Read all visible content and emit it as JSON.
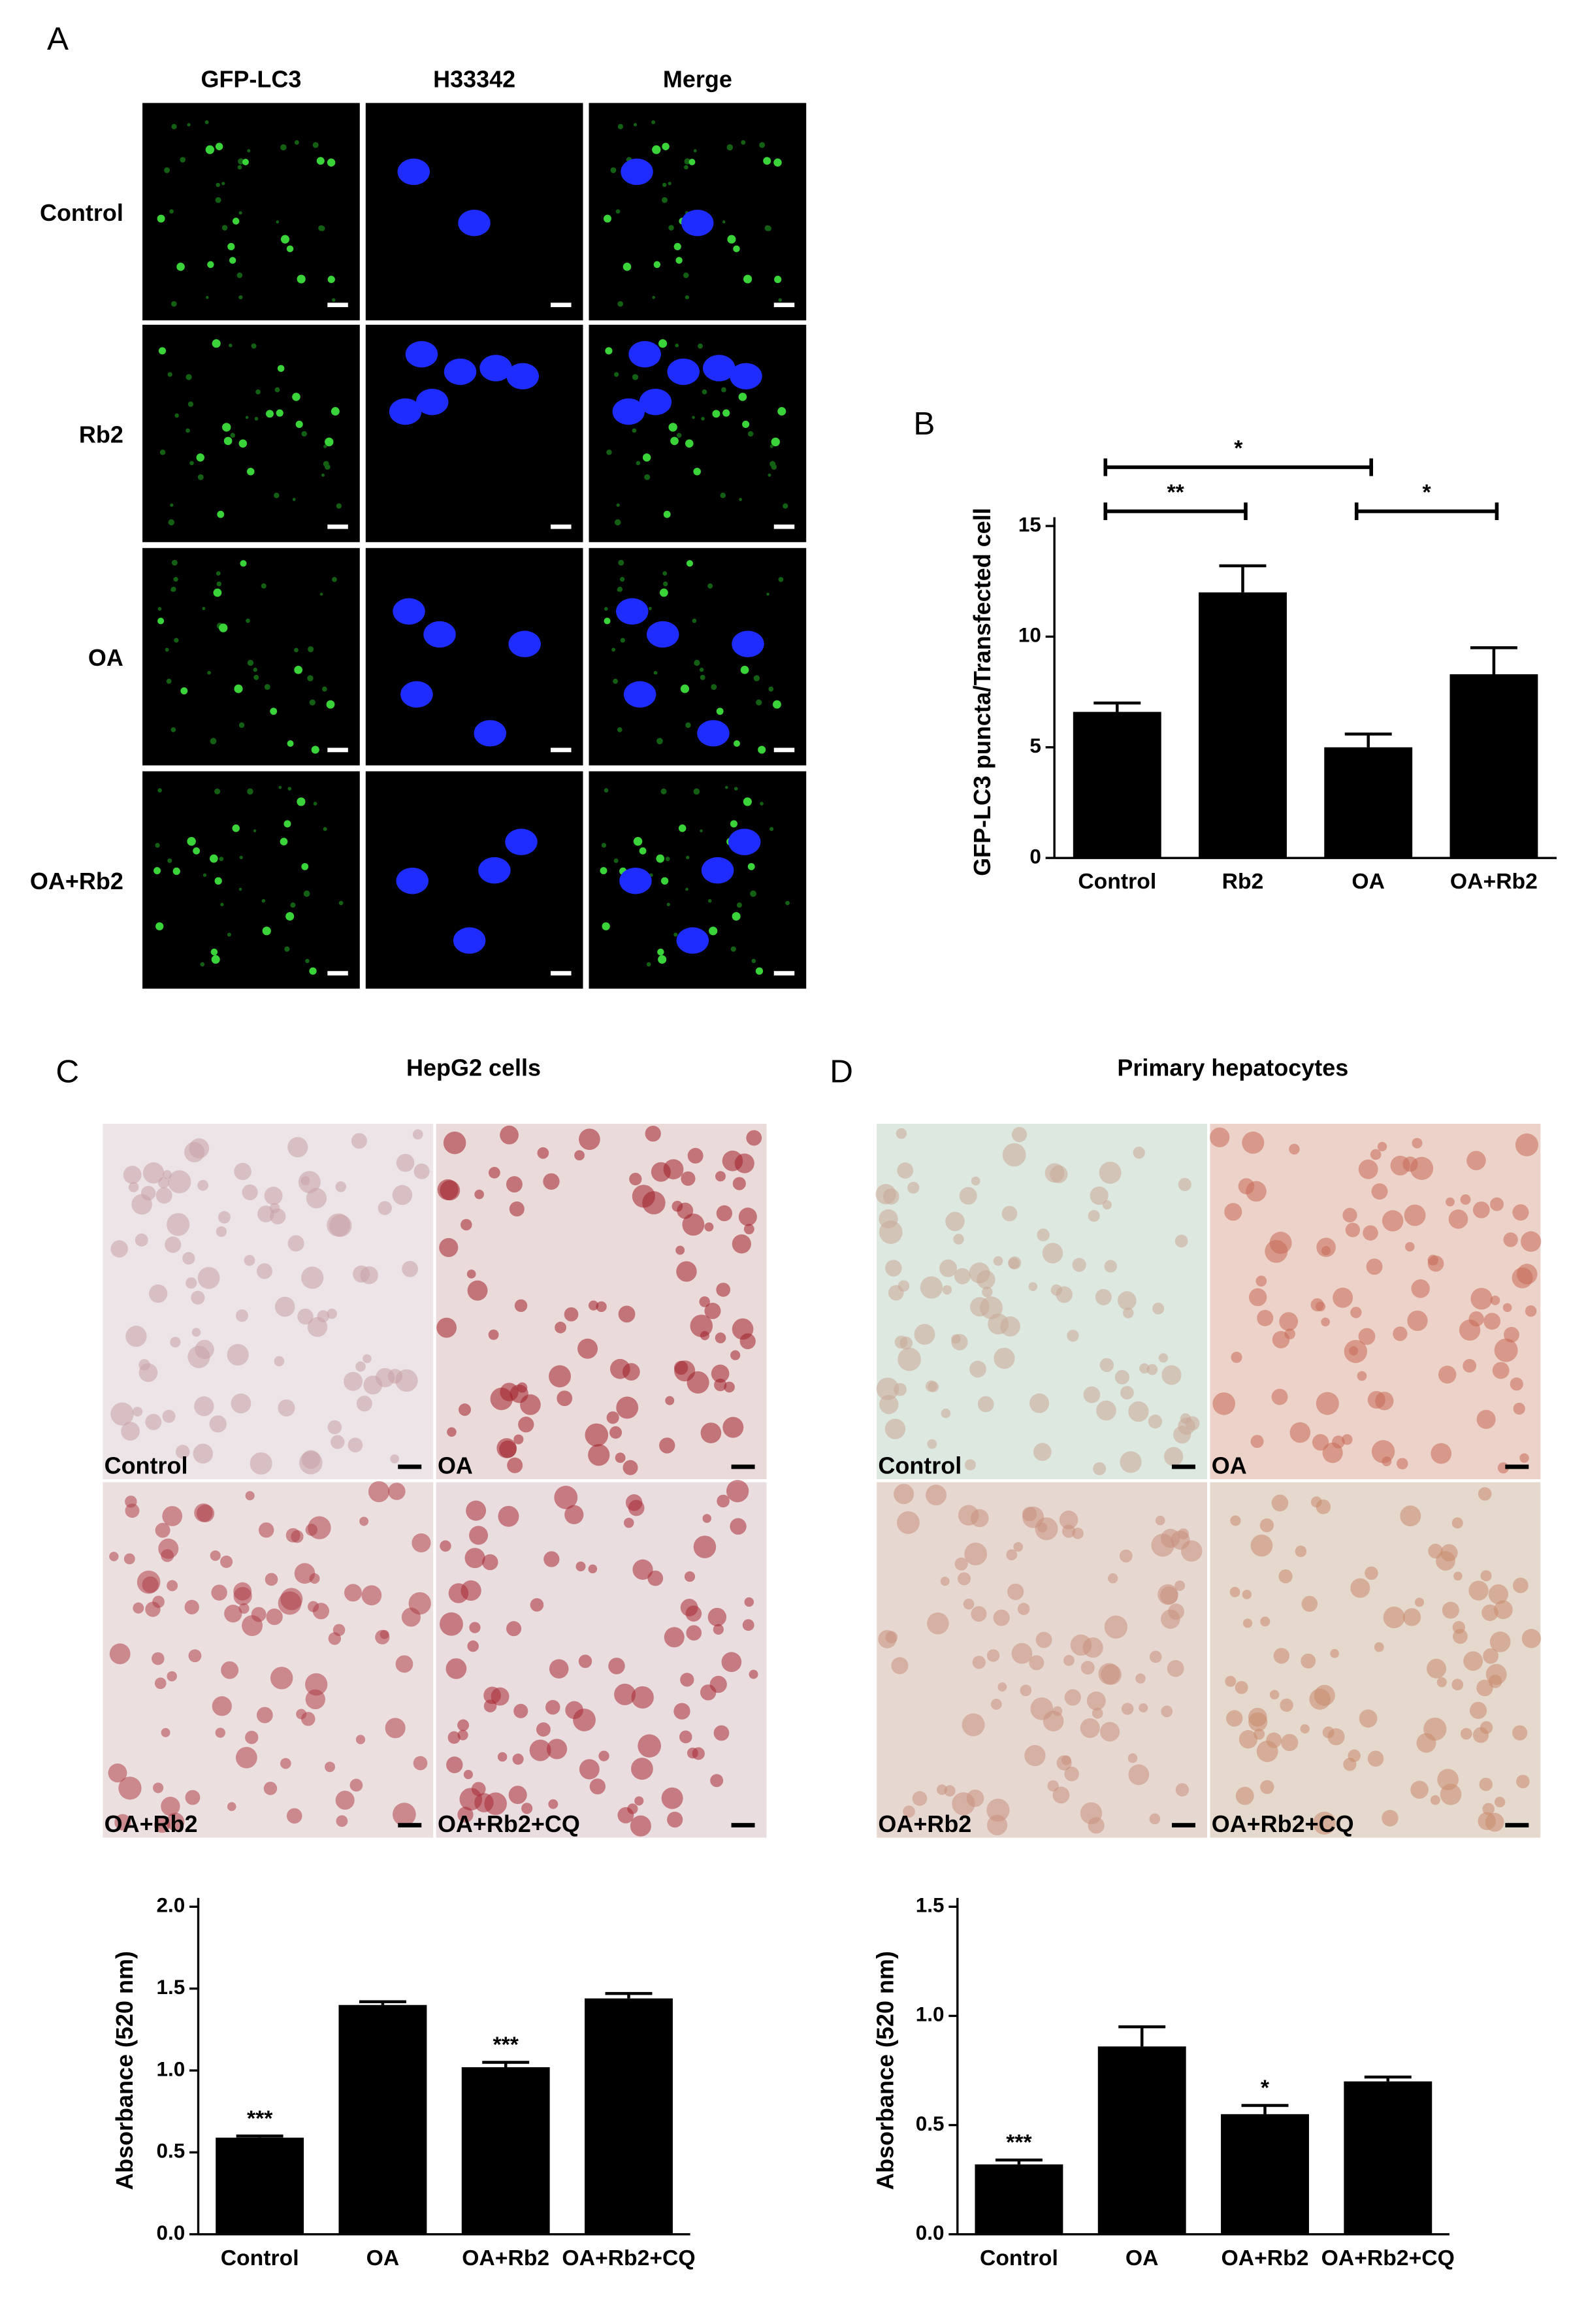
{
  "panel_a": {
    "label": "A",
    "columns": [
      "GFP-LC3",
      "H33342",
      "Merge"
    ],
    "rows": [
      "Control",
      "Rb2",
      "OA",
      "OA+Rb2"
    ]
  },
  "image_panels": [
    {
      "label": "C",
      "images": [
        "Control",
        "OA",
        "OA+Rb2",
        "OA+Rb2+CQ"
      ]
    },
    {
      "label": "D",
      "images": [
        "Control",
        "OA",
        "OA+Rb2",
        "OA+Rb2+CQ"
      ]
    }
  ],
  "chart_data": [
    {
      "type": "bar",
      "panel": "B",
      "y_label": "GFP-LC3 puncta/Transfected cell",
      "categories": [
        "Control",
        "Rb2",
        "OA",
        "OA+Rb2"
      ],
      "values": [
        6.6,
        12.0,
        5.0,
        8.3
      ],
      "errors": [
        0.4,
        1.2,
        0.6,
        1.2
      ],
      "color": "#000000",
      "ylim": [
        0,
        15
      ],
      "yticks": [
        0,
        5,
        10,
        15
      ],
      "brackets": [
        {
          "text": "**",
          "from": "Control",
          "to": "Rb2"
        },
        {
          "text": "*",
          "from": "Control",
          "to": "OA"
        },
        {
          "text": "*",
          "from": "OA",
          "to": "OA+Rb2"
        }
      ]
    },
    {
      "type": "bar",
      "panel": "C",
      "title": "HepG2 cells",
      "y_label": "Absorbance (520 nm)",
      "categories": [
        "Control",
        "OA",
        "OA+Rb2",
        "OA+Rb2+CQ"
      ],
      "values": [
        0.59,
        1.4,
        1.02,
        1.44
      ],
      "errors": [
        0.01,
        0.02,
        0.03,
        0.03
      ],
      "value_annotations": [
        "***",
        null,
        "***",
        null
      ],
      "color": "#000000",
      "ylim": [
        0,
        2.0
      ],
      "yticks": [
        {
          "value": 0,
          "label": "0.0"
        },
        0.5,
        {
          "value": 1,
          "label": "1.0"
        },
        1.5,
        {
          "value": 2,
          "label": "2.0"
        }
      ]
    },
    {
      "type": "bar",
      "panel": "D",
      "title": "Primary hepatocytes",
      "y_label": "Absorbance (520 nm)",
      "categories": [
        "Control",
        "OA",
        "OA+Rb2",
        "OA+Rb2+CQ"
      ],
      "values": [
        0.32,
        0.86,
        0.55,
        0.7
      ],
      "errors": [
        0.02,
        0.09,
        0.04,
        0.02
      ],
      "value_annotations": [
        "***",
        null,
        "*",
        null
      ],
      "color": "#000000",
      "ylim": [
        0,
        1.5
      ],
      "yticks": [
        {
          "value": 0,
          "label": "0.0"
        },
        0.5,
        {
          "value": 1,
          "label": "1.0"
        },
        1.5
      ]
    }
  ]
}
